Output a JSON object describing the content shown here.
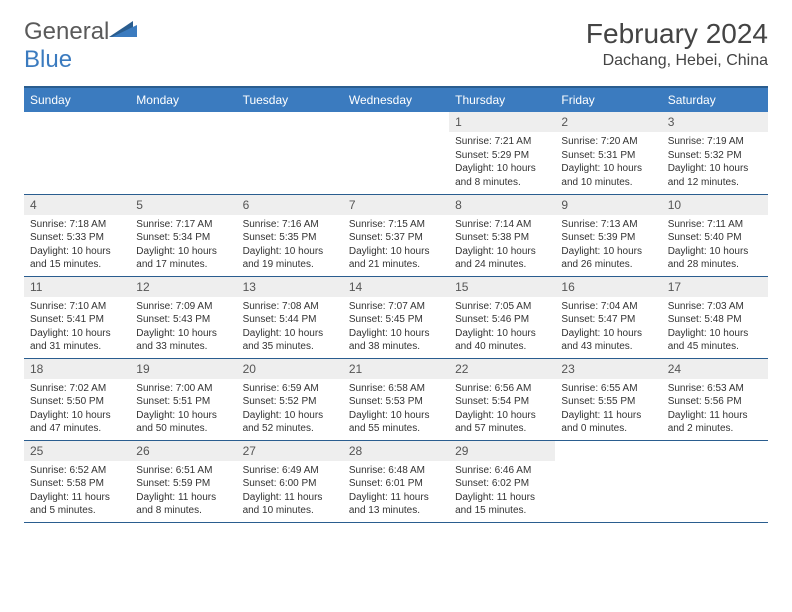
{
  "brand": {
    "text1": "General",
    "text2": "Blue"
  },
  "title": "February 2024",
  "location": "Dachang, Hebei, China",
  "colors": {
    "header_bg": "#3b7bbf",
    "header_border": "#2a5d8f",
    "daynum_bg": "#eeeeee",
    "text": "#333333"
  },
  "day_headers": [
    "Sunday",
    "Monday",
    "Tuesday",
    "Wednesday",
    "Thursday",
    "Friday",
    "Saturday"
  ],
  "weeks": [
    [
      null,
      null,
      null,
      null,
      {
        "n": "1",
        "sr": "Sunrise: 7:21 AM",
        "ss": "Sunset: 5:29 PM",
        "dl": "Daylight: 10 hours and 8 minutes."
      },
      {
        "n": "2",
        "sr": "Sunrise: 7:20 AM",
        "ss": "Sunset: 5:31 PM",
        "dl": "Daylight: 10 hours and 10 minutes."
      },
      {
        "n": "3",
        "sr": "Sunrise: 7:19 AM",
        "ss": "Sunset: 5:32 PM",
        "dl": "Daylight: 10 hours and 12 minutes."
      }
    ],
    [
      {
        "n": "4",
        "sr": "Sunrise: 7:18 AM",
        "ss": "Sunset: 5:33 PM",
        "dl": "Daylight: 10 hours and 15 minutes."
      },
      {
        "n": "5",
        "sr": "Sunrise: 7:17 AM",
        "ss": "Sunset: 5:34 PM",
        "dl": "Daylight: 10 hours and 17 minutes."
      },
      {
        "n": "6",
        "sr": "Sunrise: 7:16 AM",
        "ss": "Sunset: 5:35 PM",
        "dl": "Daylight: 10 hours and 19 minutes."
      },
      {
        "n": "7",
        "sr": "Sunrise: 7:15 AM",
        "ss": "Sunset: 5:37 PM",
        "dl": "Daylight: 10 hours and 21 minutes."
      },
      {
        "n": "8",
        "sr": "Sunrise: 7:14 AM",
        "ss": "Sunset: 5:38 PM",
        "dl": "Daylight: 10 hours and 24 minutes."
      },
      {
        "n": "9",
        "sr": "Sunrise: 7:13 AM",
        "ss": "Sunset: 5:39 PM",
        "dl": "Daylight: 10 hours and 26 minutes."
      },
      {
        "n": "10",
        "sr": "Sunrise: 7:11 AM",
        "ss": "Sunset: 5:40 PM",
        "dl": "Daylight: 10 hours and 28 minutes."
      }
    ],
    [
      {
        "n": "11",
        "sr": "Sunrise: 7:10 AM",
        "ss": "Sunset: 5:41 PM",
        "dl": "Daylight: 10 hours and 31 minutes."
      },
      {
        "n": "12",
        "sr": "Sunrise: 7:09 AM",
        "ss": "Sunset: 5:43 PM",
        "dl": "Daylight: 10 hours and 33 minutes."
      },
      {
        "n": "13",
        "sr": "Sunrise: 7:08 AM",
        "ss": "Sunset: 5:44 PM",
        "dl": "Daylight: 10 hours and 35 minutes."
      },
      {
        "n": "14",
        "sr": "Sunrise: 7:07 AM",
        "ss": "Sunset: 5:45 PM",
        "dl": "Daylight: 10 hours and 38 minutes."
      },
      {
        "n": "15",
        "sr": "Sunrise: 7:05 AM",
        "ss": "Sunset: 5:46 PM",
        "dl": "Daylight: 10 hours and 40 minutes."
      },
      {
        "n": "16",
        "sr": "Sunrise: 7:04 AM",
        "ss": "Sunset: 5:47 PM",
        "dl": "Daylight: 10 hours and 43 minutes."
      },
      {
        "n": "17",
        "sr": "Sunrise: 7:03 AM",
        "ss": "Sunset: 5:48 PM",
        "dl": "Daylight: 10 hours and 45 minutes."
      }
    ],
    [
      {
        "n": "18",
        "sr": "Sunrise: 7:02 AM",
        "ss": "Sunset: 5:50 PM",
        "dl": "Daylight: 10 hours and 47 minutes."
      },
      {
        "n": "19",
        "sr": "Sunrise: 7:00 AM",
        "ss": "Sunset: 5:51 PM",
        "dl": "Daylight: 10 hours and 50 minutes."
      },
      {
        "n": "20",
        "sr": "Sunrise: 6:59 AM",
        "ss": "Sunset: 5:52 PM",
        "dl": "Daylight: 10 hours and 52 minutes."
      },
      {
        "n": "21",
        "sr": "Sunrise: 6:58 AM",
        "ss": "Sunset: 5:53 PM",
        "dl": "Daylight: 10 hours and 55 minutes."
      },
      {
        "n": "22",
        "sr": "Sunrise: 6:56 AM",
        "ss": "Sunset: 5:54 PM",
        "dl": "Daylight: 10 hours and 57 minutes."
      },
      {
        "n": "23",
        "sr": "Sunrise: 6:55 AM",
        "ss": "Sunset: 5:55 PM",
        "dl": "Daylight: 11 hours and 0 minutes."
      },
      {
        "n": "24",
        "sr": "Sunrise: 6:53 AM",
        "ss": "Sunset: 5:56 PM",
        "dl": "Daylight: 11 hours and 2 minutes."
      }
    ],
    [
      {
        "n": "25",
        "sr": "Sunrise: 6:52 AM",
        "ss": "Sunset: 5:58 PM",
        "dl": "Daylight: 11 hours and 5 minutes."
      },
      {
        "n": "26",
        "sr": "Sunrise: 6:51 AM",
        "ss": "Sunset: 5:59 PM",
        "dl": "Daylight: 11 hours and 8 minutes."
      },
      {
        "n": "27",
        "sr": "Sunrise: 6:49 AM",
        "ss": "Sunset: 6:00 PM",
        "dl": "Daylight: 11 hours and 10 minutes."
      },
      {
        "n": "28",
        "sr": "Sunrise: 6:48 AM",
        "ss": "Sunset: 6:01 PM",
        "dl": "Daylight: 11 hours and 13 minutes."
      },
      {
        "n": "29",
        "sr": "Sunrise: 6:46 AM",
        "ss": "Sunset: 6:02 PM",
        "dl": "Daylight: 11 hours and 15 minutes."
      },
      null,
      null
    ]
  ]
}
